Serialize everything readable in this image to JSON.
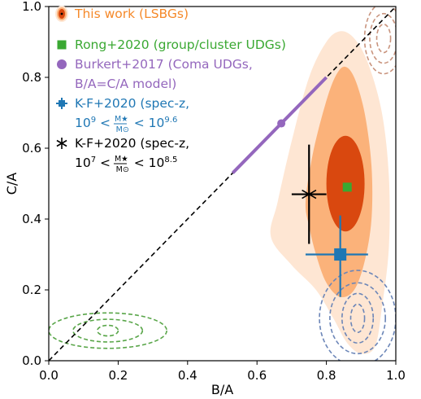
{
  "chart_data": {
    "type": "scatter",
    "xlabel": "B/A",
    "ylabel": "C/A",
    "xlim": [
      0.0,
      1.0
    ],
    "ylim": [
      0.0,
      1.0
    ],
    "xticks": [
      "0.0",
      "0.2",
      "0.4",
      "0.6",
      "0.8",
      "1.0"
    ],
    "yticks": [
      "0.0",
      "0.2",
      "0.4",
      "0.6",
      "0.8",
      "1.0"
    ],
    "grid": false,
    "legend_position": "top-left",
    "colors": {
      "lsbg_inner": "#d9480f",
      "lsbg_mid": "#fbb27a",
      "lsbg_outer": "#fee6d3",
      "lsbg_text": "#f5892a",
      "rong": "#3aa832",
      "burkert": "#9467bd",
      "kf_high": "#1f77b4",
      "kf_low": "#000000",
      "rong_contours": "#5aa64a",
      "kf_contours": "#6c86b8",
      "lsbg_contours": "#c9947e"
    },
    "legend": [
      {
        "key": "lsbg",
        "lines": [
          "This work (LSBGs)"
        ]
      },
      {
        "key": "rong",
        "lines": [
          "Rong+2020 (group/cluster UDGs)"
        ]
      },
      {
        "key": "burkert",
        "lines": [
          "Burkert+2017 (Coma UDGs,",
          "B/A=C/A model)"
        ]
      },
      {
        "key": "kf_high",
        "lines": [
          "K-F+2020 (spec-z,",
          "10^9 < M★/M⊙ < 10^9.6"
        ]
      },
      {
        "key": "kf_low",
        "lines": [
          "K-F+2020 (spec-z,",
          "10^7 < M★/M⊙ < 10^8.5"
        ]
      }
    ],
    "series": [
      {
        "key": "lsbg",
        "kind": "filled_contours",
        "levels": [
          {
            "level": "outer",
            "outline": [
              [
                0.64,
                0.35
              ],
              [
                0.66,
                0.45
              ],
              [
                0.7,
                0.62
              ],
              [
                0.75,
                0.8
              ],
              [
                0.8,
                0.9
              ],
              [
                0.84,
                0.93
              ],
              [
                0.88,
                0.91
              ],
              [
                0.92,
                0.84
              ],
              [
                0.96,
                0.7
              ],
              [
                0.98,
                0.52
              ],
              [
                0.98,
                0.32
              ],
              [
                0.96,
                0.15
              ],
              [
                0.94,
                0.04
              ],
              [
                0.9,
                0.02
              ],
              [
                0.86,
                0.05
              ],
              [
                0.82,
                0.12
              ],
              [
                0.77,
                0.2
              ],
              [
                0.7,
                0.27
              ]
            ]
          },
          {
            "level": "mid",
            "outline": [
              [
                0.74,
                0.45
              ],
              [
                0.76,
                0.58
              ],
              [
                0.79,
                0.7
              ],
              [
                0.82,
                0.79
              ],
              [
                0.85,
                0.83
              ],
              [
                0.88,
                0.8
              ],
              [
                0.91,
                0.7
              ],
              [
                0.93,
                0.55
              ],
              [
                0.93,
                0.4
              ],
              [
                0.91,
                0.28
              ],
              [
                0.88,
                0.2
              ],
              [
                0.84,
                0.18
              ],
              [
                0.8,
                0.22
              ],
              [
                0.77,
                0.3
              ],
              [
                0.75,
                0.38
              ]
            ]
          },
          {
            "level": "inner",
            "center": [
              0.855,
              0.5
            ],
            "radius": [
              0.055,
              0.135
            ]
          }
        ]
      },
      {
        "key": "rong_contours",
        "kind": "dashed_contours",
        "center": [
          0.17,
          0.085
        ],
        "radii": [
          [
            0.03,
            0.015
          ],
          [
            0.1,
            0.032
          ],
          [
            0.17,
            0.05
          ]
        ]
      },
      {
        "key": "kf_contours",
        "kind": "dashed_contours",
        "center": [
          0.89,
          0.12
        ],
        "radii": [
          [
            0.02,
            0.04
          ],
          [
            0.045,
            0.07
          ],
          [
            0.08,
            0.1
          ],
          [
            0.11,
            0.135
          ]
        ]
      },
      {
        "key": "lsbg_contours",
        "kind": "dashed_contours",
        "center": [
          0.965,
          0.91
        ],
        "radii": [
          [
            0.02,
            0.04
          ],
          [
            0.04,
            0.07
          ],
          [
            0.055,
            0.1
          ]
        ]
      },
      {
        "key": "burkert",
        "kind": "line_with_point",
        "line": [
          [
            0.53,
            0.53
          ],
          [
            0.8,
            0.8
          ]
        ],
        "point": [
          0.67,
          0.67
        ]
      },
      {
        "key": "rong",
        "kind": "point",
        "x": 0.86,
        "y": 0.49
      },
      {
        "key": "kf_high",
        "kind": "errorbar",
        "x": 0.84,
        "y": 0.3,
        "xerr": [
          0.1,
          0.08
        ],
        "yerr": [
          0.12,
          0.11
        ]
      },
      {
        "key": "kf_low",
        "kind": "errorbar",
        "x": 0.75,
        "y": 0.47,
        "xerr": [
          0.05,
          0.05
        ],
        "yerr": [
          0.14,
          0.14
        ]
      }
    ],
    "reference_line": {
      "kind": "one_to_one",
      "from": [
        0.0,
        0.0
      ],
      "to": [
        1.0,
        1.0
      ]
    }
  }
}
